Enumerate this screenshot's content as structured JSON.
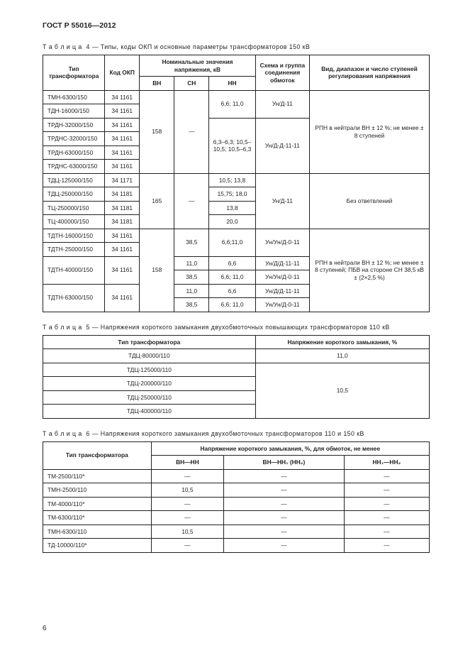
{
  "header": "ГОСТ Р 55016—2012",
  "pageNumber": "6",
  "table4": {
    "caption_prefix": "Т а б л и ц а",
    "caption_num": "4",
    "caption_text": "— Типы, коды ОКП и основные параметры трансформаторов 150 кВ",
    "head": {
      "type": "Тип трансформатора",
      "okp": "Код ОКП",
      "nominal": "Номинальные значения напряжения, кВ",
      "vn": "ВН",
      "ch": "СН",
      "nn": "НН",
      "scheme": "Схема и группа соединения обмоток",
      "reg": "Вид, диапазон и число ступеней регулирования напряжения"
    },
    "block1": {
      "vn": "158",
      "ch": "—",
      "nn1": "6,6; 11,0",
      "sch1": "Ун/Д-11",
      "nn2": "6,3–6,3; 10,5–10,5; 10,5–6,3",
      "sch2": "Ун/Д-Д-11-11",
      "reg": "РПН в нейтрали ВН ± 12 %; не менее ± 8 ступеней",
      "rows": [
        {
          "type": "ТМН-6300/150",
          "okp": "34 1161"
        },
        {
          "type": "ТДН-16000/150",
          "okp": "34 1161"
        },
        {
          "type": "ТРДН-32000/150",
          "okp": "34 1161"
        },
        {
          "type": "ТРДНС-32000/150",
          "okp": "34 1161"
        },
        {
          "type": "ТРДН-63000/150",
          "okp": "34 1161"
        },
        {
          "type": "ТРДНС-63000/150",
          "okp": "34 1161"
        }
      ]
    },
    "block2": {
      "vn": "165",
      "ch": "—",
      "sch": "Ун/Д-11",
      "reg": "Без ответвлений",
      "rows": [
        {
          "type": "ТДЦ-125000/150",
          "okp": "34 1171",
          "nn": "10,5; 13,8"
        },
        {
          "type": "ТДЦ-250000/150",
          "okp": "34 1181",
          "nn": "15,75; 18,0"
        },
        {
          "type": "ТЦ-250000/150",
          "okp": "34 1181",
          "nn": "13,8"
        },
        {
          "type": "ТЦ-400000/150",
          "okp": "34 1181",
          "nn": "20,0"
        }
      ]
    },
    "block3": {
      "vn": "158",
      "reg": "РПН в нейтрали ВН ± 12 %; не менее ± 8 ступеней; ПБВ на стороне СН 38,5 кВ ± (2×2,5 %)",
      "rows": [
        {
          "type": "ТДТН-16000/150",
          "okp": "34 1161",
          "ch": "38,5",
          "nn": "6,6;11,0",
          "sch": "Ун/Ун/Д-0-11",
          "chSpan": 2
        },
        {
          "type": "ТДТН-25000/150",
          "okp": "34 1161"
        },
        {
          "type": "ТДТН-40000/150",
          "okp": "34 1161",
          "typeSpan": 2,
          "sub": [
            {
              "ch": "11,0",
              "nn": "6,6",
              "sch": "Ун/Д/Д-11-11"
            },
            {
              "ch": "38,5",
              "nn": "6,6; 11,0",
              "sch": "Ун/Ун/Д-0-11"
            }
          ]
        },
        {
          "type": "ТДТН-63000/150",
          "okp": "34 1161",
          "typeSpan": 2,
          "sub": [
            {
              "ch": "11,0",
              "nn": "6,6",
              "sch": "Ун/Д/Д-11-11"
            },
            {
              "ch": "38,5",
              "nn": "6,6; 11,0",
              "sch": "Ун/Ун/Д-0-11"
            }
          ]
        }
      ]
    }
  },
  "table5": {
    "caption_prefix": "Т а б л и ц а",
    "caption_num": "5",
    "caption_text": "— Напряжения короткого замыкания двухобмоточных повышающих трансформаторов 110 кВ",
    "head": {
      "type": "Тип трансформатора",
      "val": "Напряжение короткого замыкания, %"
    },
    "row1": {
      "type": "ТДЦ-80000/110",
      "val": "11,0"
    },
    "groupVal": "10,5",
    "groupRows": [
      "ТДЦ-125000/110",
      "ТДЦ-200000/110",
      "ТДЦ-250000/110",
      "ТДЦ-400000/110"
    ]
  },
  "table6": {
    "caption_prefix": "Т а б л и ц а",
    "caption_num": "6",
    "caption_text": "— Напряжения короткого замыкания двухобмоточных трансформаторов 110 и 150 кВ",
    "head": {
      "type": "Тип трансформатора",
      "top": "Напряжение короткого замыкания, %, для обмоток, не менее",
      "c1": "ВН—НН",
      "c2": "ВН—НН₁ (НН₂)",
      "c3": "НН₁—НН₂"
    },
    "rows": [
      {
        "type": "ТМ-2500/110*",
        "c1": "—",
        "c2": "—",
        "c3": "—"
      },
      {
        "type": "ТМН-2500/110",
        "c1": "10,5",
        "c2": "—",
        "c3": "—"
      },
      {
        "type": "ТМ-4000/110*",
        "c1": "—",
        "c2": "—",
        "c3": "—"
      },
      {
        "type": "ТМ-6300/110*",
        "c1": "—",
        "c2": "—",
        "c3": "—"
      },
      {
        "type": "ТМН-6300/110",
        "c1": "10,5",
        "c2": "—",
        "c3": "—"
      },
      {
        "type": "ТД-10000/110*",
        "c1": "—",
        "c2": "—",
        "c3": "—"
      }
    ]
  }
}
